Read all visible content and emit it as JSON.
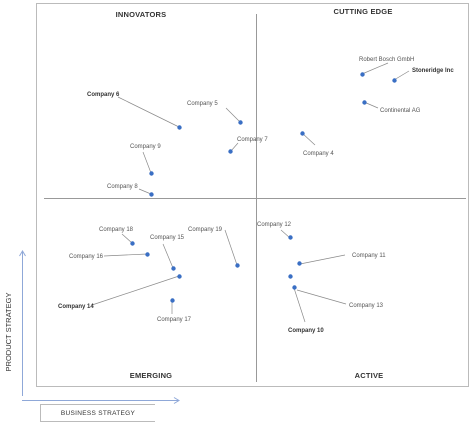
{
  "quadrants": {
    "innovators": "INNOVATORS",
    "cutting_edge": "CUTTING EDGE",
    "emerging": "EMERGING",
    "active": "ACTIVE"
  },
  "axes": {
    "y_label": "PRODUCT STRATEGY",
    "x_label": "BUSINESS STRATEGY"
  },
  "companies": [
    {
      "id": "robert-bosch",
      "name": "Robert Bosch GmbH",
      "bold": false
    },
    {
      "id": "stoneridge",
      "name": "Stoneridge Inc",
      "bold": true
    },
    {
      "id": "continental",
      "name": "Continental AG",
      "bold": false
    },
    {
      "id": "company-4",
      "name": "Company 4",
      "bold": false
    },
    {
      "id": "company-5",
      "name": "Company 5",
      "bold": false
    },
    {
      "id": "company-6",
      "name": "Company 6",
      "bold": true
    },
    {
      "id": "company-7",
      "name": "Company 7",
      "bold": false
    },
    {
      "id": "company-8",
      "name": "Company 8",
      "bold": false
    },
    {
      "id": "company-9",
      "name": "Company 9",
      "bold": false
    },
    {
      "id": "company-10",
      "name": "Company 10",
      "bold": true
    },
    {
      "id": "company-11",
      "name": "Company 11",
      "bold": false
    },
    {
      "id": "company-12",
      "name": "Company 12",
      "bold": false
    },
    {
      "id": "company-13",
      "name": "Company 13",
      "bold": false
    },
    {
      "id": "company-14",
      "name": "Company 14",
      "bold": true
    },
    {
      "id": "company-15",
      "name": "Company 15",
      "bold": false
    },
    {
      "id": "company-16",
      "name": "Company 16",
      "bold": false
    },
    {
      "id": "company-17",
      "name": "Company 17",
      "bold": false
    },
    {
      "id": "company-18",
      "name": "Company 18",
      "bold": false
    },
    {
      "id": "company-19",
      "name": "Company 19",
      "bold": false
    }
  ],
  "colors": {
    "dot": "#3a6fc4",
    "leader": "#8a8a8a",
    "frame": "#bbbbbb",
    "divider": "#999999",
    "axis_arrow": "#8fa8d8"
  }
}
